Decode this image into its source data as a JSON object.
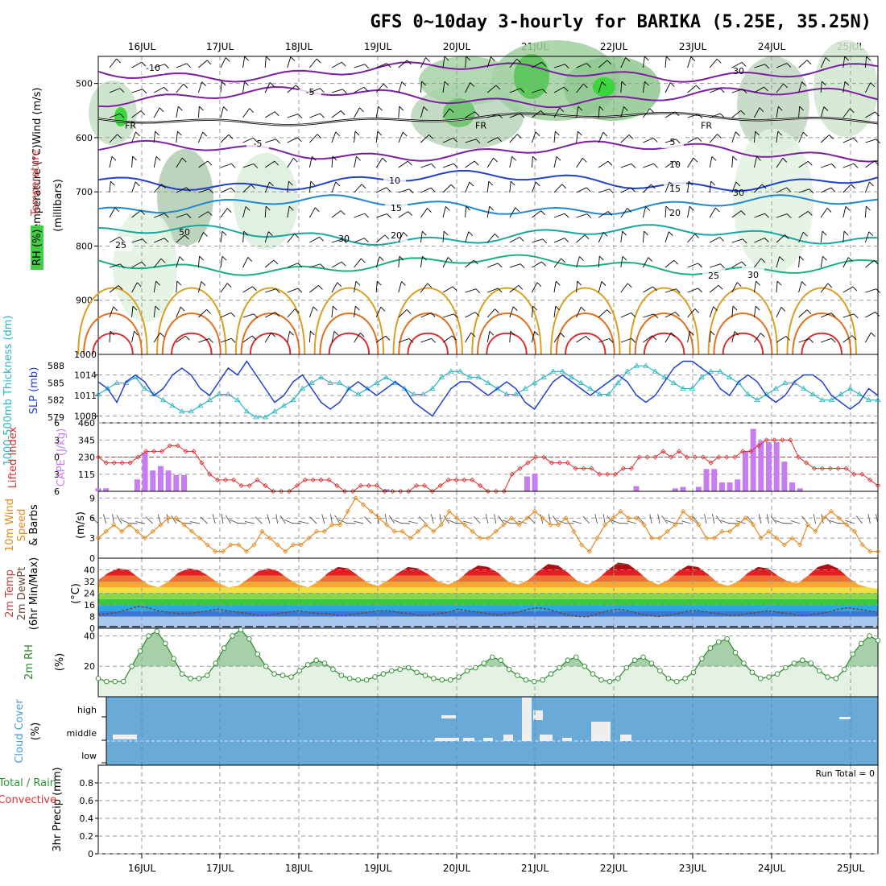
{
  "chart_data": {
    "type": "meteogram",
    "title": "GFS 0~10day 3-hourly for BARIKA (5.25E, 35.25N)",
    "dates": [
      "16JUL",
      "17JUL",
      "18JUL",
      "19JUL",
      "20JUL",
      "21JUL",
      "22JUL",
      "23JUL",
      "24JUL",
      "25JUL"
    ],
    "colors": {
      "cape": "#c77cf0",
      "lifted": "#d93030",
      "slp": "#1f3fd0",
      "thick": "#2ab5c0",
      "wind": "#e08a20",
      "rh2m": "#2a8a2a",
      "cloud": "#6aaad6",
      "upper_wind": "#7b1fa2",
      "temp_panel": "#e05050"
    },
    "upper_air": {
      "ylabel": "(millibars)",
      "title_temp": "Temperature",
      "unit": "(°C)",
      "title_wind": "Wind (m/s)",
      "rh_label": "RH (%)",
      "ylim": [
        1000,
        450
      ],
      "yticks": [
        500,
        600,
        700,
        800,
        900
      ],
      "fr_labels": [
        "FR",
        "FR",
        "FR"
      ],
      "isotherms": [
        {
          "label": "-10",
          "level": 475,
          "color": "#7b1fa2"
        },
        {
          "label": "-5",
          "level": 525,
          "color": "#7b1fa2"
        },
        {
          "label": "-5",
          "level": 610,
          "color": "#7b1fa2"
        },
        {
          "label": "5",
          "level": 610,
          "color": "#7b1fa2"
        },
        {
          "label": "10",
          "level": 685,
          "color": "#1f3fd0"
        },
        {
          "label": "15",
          "level": 730,
          "color": "#1f88d0"
        },
        {
          "label": "20",
          "level": 770,
          "color": "#1aa6a0"
        },
        {
          "label": "25",
          "level": 830,
          "color": "#1ab080"
        },
        {
          "label": "30",
          "level": 860,
          "color": "#d8a020"
        }
      ],
      "rh_contour_labels": [
        "30",
        "30",
        "50",
        "30"
      ]
    },
    "slp_thickness": {
      "ylabel_slp": "SLP (mb)",
      "ylabel_thick": "1000-500mb Thickness (dm)",
      "slp_ticks": [
        1008,
        1011,
        1014
      ],
      "thick_ticks": [
        579,
        582,
        585,
        588
      ],
      "slp_ylim": [
        1007,
        1017
      ],
      "thick_ylim": [
        578,
        590
      ],
      "slp": [
        1013,
        1012,
        1010,
        1013,
        1014,
        1013,
        1011,
        1012,
        1014,
        1015,
        1014,
        1012,
        1011,
        1013,
        1015,
        1014,
        1016,
        1014,
        1012,
        1010,
        1011,
        1013,
        1014,
        1012,
        1010,
        1009,
        1010,
        1012,
        1013,
        1012,
        1011,
        1012,
        1013,
        1012,
        1010,
        1009,
        1008,
        1010,
        1012,
        1013,
        1013,
        1012,
        1011,
        1012,
        1013,
        1012,
        1010,
        1009,
        1011,
        1013,
        1014,
        1013,
        1012,
        1011,
        1012,
        1013,
        1014,
        1013,
        1011,
        1010,
        1011,
        1013,
        1015,
        1016,
        1016,
        1015,
        1014,
        1012,
        1011,
        1013,
        1014,
        1013,
        1011,
        1010,
        1011,
        1013,
        1014,
        1014,
        1013,
        1011,
        1010,
        1009,
        1010,
        1012,
        1011
      ],
      "thickness": [
        583,
        584,
        585,
        585,
        586,
        584,
        583,
        582,
        581,
        580,
        580,
        581,
        582,
        583,
        583,
        582,
        580,
        579,
        579,
        580,
        581,
        582,
        584,
        585,
        586,
        585,
        585,
        584,
        583,
        584,
        585,
        586,
        585,
        584,
        583,
        583,
        584,
        586,
        587,
        587,
        586,
        586,
        585,
        584,
        583,
        583,
        584,
        585,
        586,
        587,
        587,
        586,
        585,
        584,
        583,
        583,
        585,
        587,
        588,
        588,
        587,
        586,
        585,
        584,
        584,
        586,
        587,
        587,
        586,
        585,
        583,
        582,
        583,
        584,
        585,
        585,
        584,
        583,
        582,
        582,
        583,
        584,
        583,
        582,
        582
      ]
    },
    "cape_li": {
      "ylabel_li": "Lifted Index",
      "ylabel_cape": "CAPE (J/kg)",
      "cape_ticks": [
        115,
        230,
        345,
        460
      ],
      "li_ticks": [
        -6,
        -3,
        0,
        3,
        6
      ],
      "cape_ylim": [
        0,
        460
      ],
      "cape": [
        20,
        20,
        0,
        0,
        0,
        80,
        260,
        140,
        170,
        140,
        110,
        110,
        0,
        0,
        0,
        0,
        0,
        0,
        0,
        0,
        0,
        0,
        0,
        0,
        0,
        0,
        0,
        0,
        0,
        0,
        0,
        0,
        0,
        0,
        0,
        0,
        0,
        15,
        0,
        0,
        0,
        0,
        0,
        0,
        0,
        0,
        0,
        0,
        0,
        0,
        0,
        0,
        0,
        0,
        0,
        100,
        120,
        0,
        0,
        0,
        0,
        0,
        0,
        0,
        0,
        0,
        0,
        0,
        0,
        35,
        0,
        0,
        0,
        0,
        20,
        30,
        0,
        30,
        150,
        150,
        60,
        60,
        80,
        270,
        420,
        340,
        330,
        330,
        200,
        60,
        20,
        0,
        0,
        0,
        0,
        0,
        0,
        0,
        0,
        0,
        0
      ],
      "lifted": [
        0,
        1,
        1,
        1,
        1,
        0,
        -1,
        -1,
        -1,
        -2,
        -2,
        -1,
        -1,
        1,
        3,
        4,
        4,
        4,
        5,
        5,
        4,
        5,
        6,
        6,
        6,
        5,
        4,
        4,
        4,
        4,
        5,
        6,
        6,
        5,
        5,
        5,
        6,
        6,
        6,
        6,
        5,
        5,
        6,
        5,
        4,
        4,
        4,
        4,
        5,
        6,
        6,
        6,
        3,
        2,
        1,
        0,
        0,
        1,
        1,
        1,
        2,
        2,
        2,
        3,
        3,
        3,
        2,
        2,
        0,
        0,
        0,
        -1,
        0,
        -1,
        0,
        0,
        0,
        1,
        0,
        0,
        0,
        -1,
        -1,
        -2,
        -3,
        -3,
        -3,
        -3,
        0,
        1,
        2,
        2,
        2,
        2,
        2,
        3,
        3,
        4,
        5
      ]
    },
    "wind10m": {
      "ylabel": "10m Wind Speed & Barbs (m/s)",
      "ticks": [
        0,
        3,
        6,
        9
      ],
      "ylim": [
        0,
        10
      ],
      "speed": [
        3,
        4,
        5,
        4,
        5,
        4,
        3,
        4,
        5,
        6,
        6,
        5,
        4,
        3,
        2,
        1,
        1,
        2,
        2,
        1,
        2,
        4,
        3,
        2,
        1,
        2,
        2,
        3,
        4,
        4,
        5,
        5,
        7,
        9,
        8,
        7,
        6,
        5,
        4,
        4,
        3,
        4,
        5,
        4,
        5,
        7,
        6,
        5,
        4,
        3,
        3,
        4,
        5,
        6,
        5,
        6,
        7,
        6,
        5,
        5,
        6,
        4,
        2,
        1,
        3,
        5,
        6,
        7,
        6,
        6,
        5,
        3,
        3,
        4,
        5,
        7,
        6,
        5,
        3,
        3,
        4,
        4,
        5,
        6,
        5,
        3,
        4,
        3,
        2,
        3,
        2,
        5,
        4,
        6,
        7,
        6,
        5,
        4,
        2,
        1,
        1
      ]
    },
    "temp2m": {
      "ylabel": "2m Temp 2m DewPt (6hr Min/Max) (°C)",
      "ticks": [
        0,
        8,
        16,
        24,
        32,
        40
      ],
      "ylim": [
        0,
        48
      ],
      "temp": [
        33,
        38,
        41,
        40,
        35,
        30,
        28,
        32,
        38,
        41,
        40,
        36,
        31,
        28,
        29,
        34,
        39,
        41,
        39,
        34,
        30,
        28,
        32,
        38,
        42,
        41,
        36,
        31,
        29,
        33,
        38,
        42,
        41,
        37,
        32,
        30,
        33,
        39,
        43,
        42,
        38,
        32,
        30,
        33,
        39,
        44,
        43,
        38,
        32,
        30,
        34,
        40,
        45,
        44,
        39,
        33,
        30,
        33,
        39,
        43,
        42,
        37,
        31,
        29,
        32,
        38,
        42,
        41,
        36,
        32,
        31,
        36,
        42,
        44,
        41,
        35,
        30,
        28,
        27
      ],
      "dewpt": [
        9,
        10,
        11,
        13,
        15,
        14,
        12,
        11,
        10,
        10,
        11,
        12,
        13,
        12,
        11,
        10,
        9,
        9,
        10,
        11,
        12,
        11,
        10,
        10,
        9,
        9,
        10,
        11,
        12,
        12,
        11,
        10,
        9,
        9,
        10,
        11,
        13,
        12,
        11,
        10,
        9,
        10,
        11,
        13,
        14,
        13,
        11,
        9,
        8,
        8,
        10,
        12,
        13,
        12,
        10,
        9,
        8,
        9,
        10,
        12,
        12,
        11,
        10,
        9,
        9,
        10,
        11,
        12,
        11,
        10,
        9,
        9,
        10,
        11,
        13,
        14,
        13,
        12,
        11
      ]
    },
    "rh2m": {
      "ylabel": "2m RH (%)",
      "ticks": [
        20,
        40
      ],
      "ylim": [
        0,
        45
      ],
      "rh": [
        12,
        10,
        10,
        10,
        20,
        30,
        40,
        43,
        35,
        25,
        15,
        12,
        12,
        14,
        22,
        32,
        40,
        44,
        38,
        28,
        20,
        15,
        14,
        13,
        17,
        21,
        24,
        22,
        18,
        14,
        12,
        11,
        11,
        13,
        15,
        17,
        18,
        19,
        16,
        14,
        12,
        11,
        11,
        13,
        17,
        19,
        22,
        26,
        24,
        18,
        14,
        11,
        10,
        11,
        15,
        19,
        24,
        26,
        20,
        15,
        11,
        10,
        12,
        19,
        24,
        26,
        22,
        17,
        12,
        10,
        12,
        16,
        25,
        32,
        36,
        38,
        29,
        22,
        16,
        12,
        13,
        15,
        19,
        22,
        24,
        22,
        17,
        13,
        12,
        18,
        28,
        35,
        40,
        37
      ]
    },
    "cloud": {
      "ylabel": "Cloud Cover (%)",
      "labels": [
        "high",
        "middle",
        "low"
      ]
    },
    "precip": {
      "ylabel": "3hr Precip (mm)",
      "legend_total": "Total / Rain",
      "legend_conv": "Convective",
      "run_total": "Run Total = 0",
      "ticks": [
        "0",
        "0.2",
        "0.4",
        "0.6",
        "0.8"
      ],
      "ylim": [
        0,
        1
      ]
    }
  }
}
